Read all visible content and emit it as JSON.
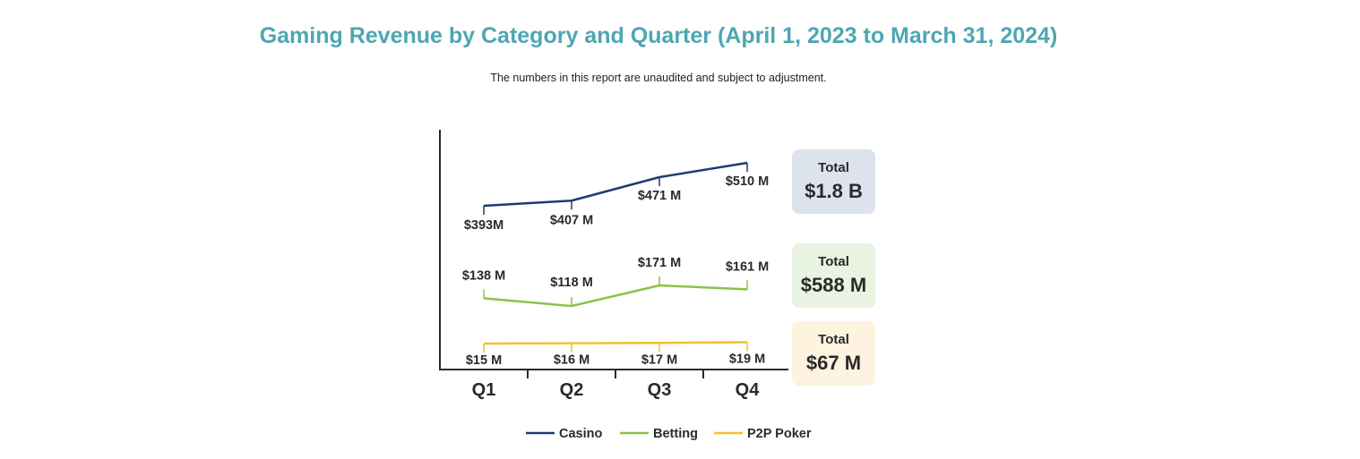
{
  "title": "Gaming Revenue by Category and Quarter (April 1, 2023 to March 31, 2024)",
  "subtitle": "The numbers in this report are unaudited and subject to adjustment.",
  "chart_data": {
    "type": "line",
    "categories": [
      "Q1",
      "Q2",
      "Q3",
      "Q4"
    ],
    "series": [
      {
        "name": "Casino",
        "color": "#1f3b73",
        "values": [
          393,
          407,
          471,
          510
        ],
        "labels": [
          "$393M",
          "$407 M",
          "$471 M",
          "$510 M"
        ],
        "total_caption": "Total",
        "total": "$1.8 B",
        "total_bg": "#dde3ec"
      },
      {
        "name": "Betting",
        "color": "#8bc34a",
        "values": [
          138,
          118,
          171,
          161
        ],
        "labels": [
          "$138 M",
          "$118 M",
          "$171 M",
          "$161 M"
        ],
        "total_caption": "Total",
        "total": "$588 M",
        "total_bg": "#e9f3e1"
      },
      {
        "name": "P2P Poker",
        "color": "#f2c12e",
        "values": [
          15,
          16,
          17,
          19
        ],
        "labels": [
          "$15 M",
          "$16 M",
          "$17 M",
          "$19 M"
        ],
        "total_caption": "Total",
        "total": "$67 M",
        "total_bg": "#fdf3df"
      }
    ],
    "unit": "$ millions",
    "legend_position": "bottom",
    "grid": false
  }
}
